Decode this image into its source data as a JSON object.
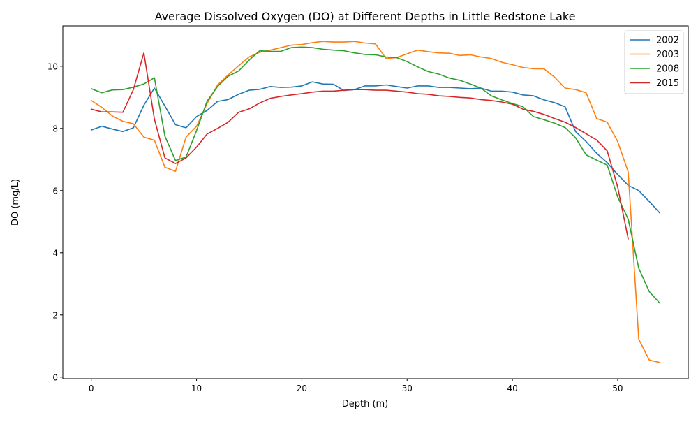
{
  "chart_data": {
    "type": "line",
    "title": "Average Dissolved Oxygen (DO) at Different Depths in Little Redstone Lake",
    "xlabel": "Depth (m)",
    "ylabel": "DO (mg/L)",
    "xlim": [
      -2.7,
      56.7
    ],
    "ylim": [
      -0.05,
      11.3
    ],
    "xticks": [
      0,
      10,
      20,
      30,
      40,
      50
    ],
    "yticks": [
      0,
      2,
      4,
      6,
      8,
      10
    ],
    "grid": false,
    "legend_position": "top-right",
    "series": [
      {
        "name": "2002",
        "color": "#1f77b4",
        "x": [
          0,
          1,
          2,
          3,
          4,
          5,
          6,
          7,
          8,
          9,
          10,
          11,
          12,
          13,
          14,
          15,
          16,
          17,
          18,
          19,
          20,
          21,
          22,
          23,
          24,
          25,
          26,
          27,
          28,
          29,
          30,
          31,
          32,
          33,
          34,
          35,
          36,
          37,
          38,
          39,
          40,
          41,
          42,
          43,
          44,
          45,
          46,
          47,
          48,
          49,
          50,
          51,
          52,
          53,
          54
        ],
        "y": [
          7.95,
          8.07,
          7.98,
          7.9,
          8.02,
          8.75,
          9.3,
          8.72,
          8.12,
          8.02,
          8.38,
          8.58,
          8.87,
          8.93,
          9.1,
          9.23,
          9.26,
          9.35,
          9.32,
          9.33,
          9.37,
          9.5,
          9.43,
          9.42,
          9.22,
          9.25,
          9.37,
          9.37,
          9.4,
          9.35,
          9.3,
          9.37,
          9.37,
          9.32,
          9.32,
          9.3,
          9.28,
          9.3,
          9.2,
          9.2,
          9.17,
          9.08,
          9.05,
          8.92,
          8.83,
          8.7,
          7.9,
          7.58,
          7.2,
          6.9,
          6.52,
          6.17,
          6.0,
          5.65,
          5.28
        ]
      },
      {
        "name": "2003",
        "color": "#ff7f0e",
        "x": [
          0,
          1,
          2,
          3,
          4,
          5,
          6,
          7,
          8,
          9,
          10,
          11,
          12,
          13,
          14,
          15,
          16,
          17,
          18,
          19,
          20,
          21,
          22,
          23,
          24,
          25,
          26,
          27,
          28,
          29,
          30,
          31,
          32,
          33,
          34,
          35,
          36,
          37,
          38,
          39,
          40,
          41,
          42,
          43,
          44,
          45,
          46,
          47,
          48,
          49,
          50,
          51,
          52,
          53,
          54
        ],
        "y": [
          8.9,
          8.68,
          8.4,
          8.23,
          8.15,
          7.72,
          7.62,
          6.75,
          6.62,
          7.72,
          8.07,
          8.8,
          9.4,
          9.72,
          10.02,
          10.3,
          10.45,
          10.52,
          10.6,
          10.68,
          10.7,
          10.76,
          10.8,
          10.78,
          10.78,
          10.8,
          10.75,
          10.72,
          10.25,
          10.28,
          10.4,
          10.52,
          10.47,
          10.43,
          10.42,
          10.35,
          10.37,
          10.3,
          10.25,
          10.13,
          10.05,
          9.96,
          9.92,
          9.92,
          9.65,
          9.3,
          9.25,
          9.15,
          8.32,
          8.2,
          7.58,
          6.6,
          1.22,
          0.55,
          0.47
        ]
      },
      {
        "name": "2008",
        "color": "#2ca02c",
        "x": [
          0,
          1,
          2,
          3,
          4,
          5,
          6,
          7,
          8,
          9,
          10,
          11,
          12,
          13,
          14,
          15,
          16,
          17,
          18,
          19,
          20,
          21,
          22,
          23,
          24,
          25,
          26,
          27,
          28,
          29,
          30,
          31,
          32,
          33,
          34,
          35,
          36,
          37,
          38,
          39,
          40,
          41,
          42,
          43,
          44,
          45,
          46,
          47,
          48,
          49,
          50,
          51,
          52,
          53,
          54
        ],
        "y": [
          9.28,
          9.15,
          9.24,
          9.25,
          9.33,
          9.43,
          9.63,
          7.75,
          6.97,
          7.08,
          7.93,
          8.88,
          9.35,
          9.68,
          9.85,
          10.2,
          10.5,
          10.48,
          10.48,
          10.6,
          10.62,
          10.6,
          10.55,
          10.52,
          10.5,
          10.43,
          10.38,
          10.37,
          10.3,
          10.28,
          10.15,
          9.98,
          9.83,
          9.75,
          9.62,
          9.55,
          9.43,
          9.3,
          9.05,
          8.92,
          8.8,
          8.7,
          8.38,
          8.28,
          8.17,
          8.03,
          7.7,
          7.15,
          6.98,
          6.82,
          5.8,
          5.08,
          3.5,
          2.75,
          2.38
        ]
      },
      {
        "name": "2015",
        "color": "#d62728",
        "x": [
          0,
          1,
          2,
          3,
          4,
          5,
          6,
          7,
          8,
          9,
          10,
          11,
          12,
          13,
          14,
          15,
          16,
          17,
          18,
          19,
          20,
          21,
          22,
          23,
          24,
          25,
          26,
          27,
          28,
          29,
          30,
          31,
          32,
          33,
          34,
          35,
          36,
          37,
          38,
          39,
          40,
          41,
          42,
          43,
          44,
          45,
          46,
          47,
          48,
          49,
          50,
          51
        ],
        "y": [
          8.62,
          8.53,
          8.53,
          8.52,
          9.25,
          10.43,
          8.3,
          7.05,
          6.87,
          7.05,
          7.4,
          7.82,
          8.0,
          8.2,
          8.52,
          8.63,
          8.82,
          8.97,
          9.03,
          9.08,
          9.12,
          9.17,
          9.2,
          9.2,
          9.23,
          9.25,
          9.25,
          9.23,
          9.23,
          9.2,
          9.17,
          9.12,
          9.1,
          9.05,
          9.03,
          9.0,
          8.98,
          8.93,
          8.9,
          8.85,
          8.78,
          8.62,
          8.55,
          8.45,
          8.32,
          8.2,
          8.03,
          7.83,
          7.63,
          7.28,
          6.12,
          4.45
        ]
      }
    ]
  }
}
